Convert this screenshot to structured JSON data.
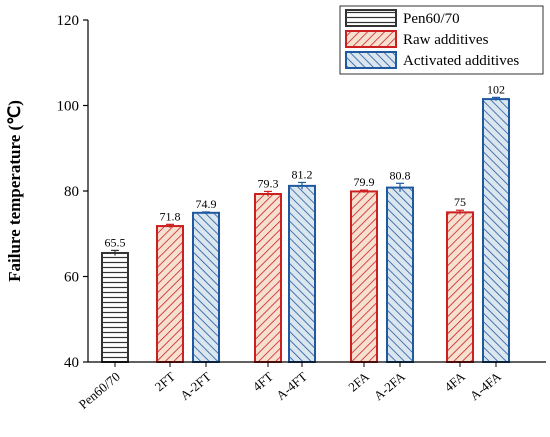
{
  "chart_data": {
    "type": "bar",
    "ylabel": "Failure temperature (℃)",
    "ylim": [
      40,
      120
    ],
    "yticks": [
      "40",
      "60",
      "80",
      "100",
      "120"
    ],
    "grid": false,
    "legend_position": "top-right",
    "categories": [
      "Pen60/70",
      "2FT",
      "A-2FT",
      "4FT",
      "A-4FT",
      "2FA",
      "A-2FA",
      "4FA",
      "A-4FA"
    ],
    "bars": [
      {
        "category": "Pen60/70",
        "value": 65.5,
        "label": "65.5",
        "error": 0.6,
        "series": "Pen60/70"
      },
      {
        "category": "2FT",
        "value": 71.8,
        "label": "71.8",
        "error": 0.4,
        "series": "Raw additives"
      },
      {
        "category": "A-2FT",
        "value": 74.9,
        "label": "74.9",
        "error": 0.2,
        "series": "Activated additives"
      },
      {
        "category": "4FT",
        "value": 79.3,
        "label": "79.3",
        "error": 0.6,
        "series": "Raw additives"
      },
      {
        "category": "A-4FT",
        "value": 81.2,
        "label": "81.2",
        "error": 0.8,
        "series": "Activated additives"
      },
      {
        "category": "2FA",
        "value": 79.9,
        "label": "79.9",
        "error": 0.3,
        "series": "Raw additives"
      },
      {
        "category": "A-2FA",
        "value": 80.8,
        "label": "80.8",
        "error": 1.0,
        "series": "Activated additives"
      },
      {
        "category": "4FA",
        "value": 75.0,
        "label": "75",
        "error": 0.5,
        "series": "Raw additives"
      },
      {
        "category": "A-4FA",
        "value": 101.5,
        "label": "102",
        "error": 0.4,
        "series": "Activated additives"
      }
    ],
    "series": [
      {
        "name": "Pen60/70",
        "pattern": "horizontal",
        "color": "#333333"
      },
      {
        "name": "Raw additives",
        "pattern": "diagonal-up",
        "color": "#cc1f1f",
        "fill": "#f6e1d0"
      },
      {
        "name": "Activated additives",
        "pattern": "diagonal-down",
        "color": "#1f5aa0",
        "fill": "#dbe6ef"
      }
    ]
  }
}
